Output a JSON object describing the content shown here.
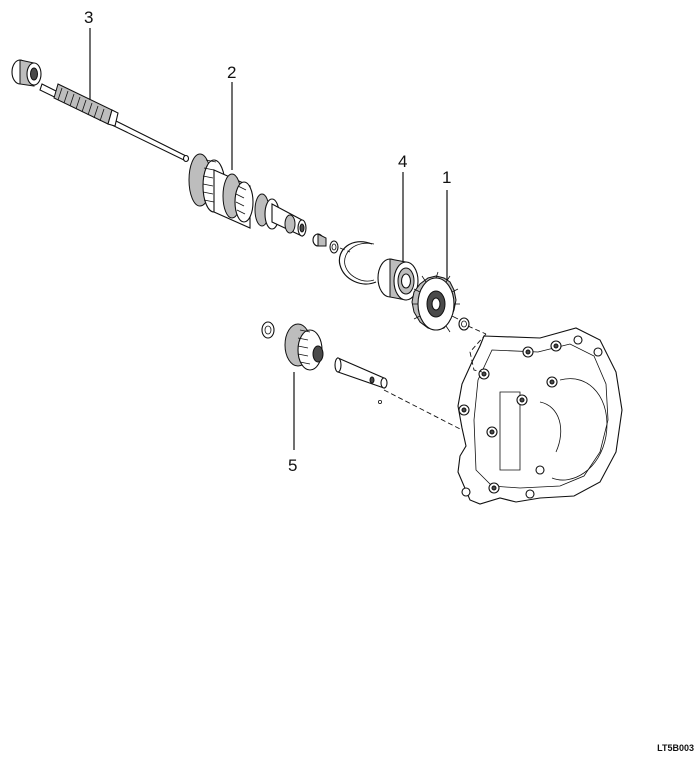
{
  "diagram": {
    "callouts": [
      {
        "id": "1",
        "label": "1"
      },
      {
        "id": "2",
        "label": "2"
      },
      {
        "id": "3",
        "label": "3"
      },
      {
        "id": "4",
        "label": "4"
      },
      {
        "id": "5",
        "label": "5"
      }
    ],
    "figure_code": "LT5B003"
  }
}
